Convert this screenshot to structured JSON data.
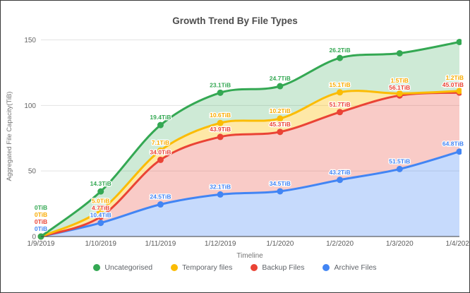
{
  "chart": {
    "title": "Growth Trend By File Types",
    "x_axis_title": "Timeline",
    "y_axis_title": "Aggregated File Capacity(TiB)"
  },
  "chart_data": {
    "type": "area",
    "stacked": true,
    "title": "Growth Trend By File Types",
    "xlabel": "Timeline",
    "ylabel": "Aggregated File Capacity(TiB)",
    "ylim": [
      0,
      150
    ],
    "y_ticks": [
      0,
      50,
      100,
      150
    ],
    "grid": "horizontal",
    "legend_position": "bottom",
    "unit": "TiB",
    "categories": [
      "1/9/2019",
      "1/10/2019",
      "1/11/2019",
      "1/12/2019",
      "1/1/2020",
      "1/2/2020",
      "1/3/2020",
      "1/4/2020"
    ],
    "series": [
      {
        "name": "Archive Files",
        "color": "#4285f4",
        "fill_opacity": 0.3,
        "values": [
          0,
          10.4,
          24.5,
          32.1,
          34.5,
          43.2,
          51.5,
          64.8
        ],
        "labels": [
          "0TiB",
          "10.4TiB",
          "24.5TiB",
          "32.1TiB",
          "34.5TiB",
          "43.2TiB",
          "51.5TiB",
          "64.8TiB"
        ]
      },
      {
        "name": "Backup Files",
        "color": "#ea4335",
        "fill_opacity": 0.28,
        "values": [
          0,
          4.7,
          34.0,
          43.9,
          45.3,
          51.7,
          56.1,
          45.0
        ],
        "labels": [
          "0TiB",
          "4.7TiB",
          "34.0TiB",
          "43.9TiB",
          "45.3TiB",
          "51.7TiB",
          "56.1TiB",
          "45.0TiB"
        ]
      },
      {
        "name": "Temporary files",
        "color": "#fbbc04",
        "label_color": "#f9ab00",
        "fill_opacity": 0.35,
        "values": [
          0,
          5.0,
          7.1,
          10.6,
          10.2,
          15.1,
          1.5,
          1.2
        ],
        "labels": [
          "0TiB",
          "5.0TiB",
          "7.1TiB",
          "10.6TiB",
          "10.2TiB",
          "15.1TiB",
          "1.5TiB",
          "1.2TiB"
        ]
      },
      {
        "name": "Uncategorised",
        "color": "#34a853",
        "fill_opacity": 0.24,
        "values": [
          0,
          14.3,
          19.4,
          23.1,
          24.7,
          26.2,
          30.7,
          37.4
        ],
        "labels": [
          "0TiB",
          "14.3TiB",
          "19.4TiB",
          "23.1TiB",
          "24.7TiB",
          "26.2TiB",
          "",
          ""
        ]
      }
    ],
    "legend_order": [
      "Uncategorised",
      "Temporary files",
      "Backup Files",
      "Archive Files"
    ]
  }
}
